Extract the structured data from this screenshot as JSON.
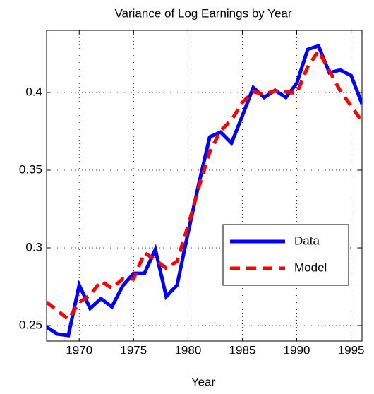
{
  "chart_data": {
    "type": "line",
    "title": "Variance of Log Earnings by Year",
    "x_label": "Year",
    "x": [
      1967,
      1968,
      1969,
      1970,
      1971,
      1972,
      1973,
      1974,
      1975,
      1976,
      1977,
      1978,
      1979,
      1980,
      1981,
      1982,
      1983,
      1984,
      1985,
      1986,
      1987,
      1988,
      1989,
      1990,
      1991,
      1992,
      1993,
      1994,
      1995,
      1996
    ],
    "series": [
      {
        "name": "Data",
        "color": "#0000ff",
        "dashed": false,
        "values": [
          0.249,
          0.2445,
          0.2436,
          0.276,
          0.261,
          0.2673,
          0.262,
          0.2755,
          0.2836,
          0.2836,
          0.299,
          0.2686,
          0.276,
          0.3095,
          0.3414,
          0.3714,
          0.3745,
          0.3675,
          0.385,
          0.4032,
          0.3968,
          0.4014,
          0.3968,
          0.4059,
          0.4277,
          0.43,
          0.4127,
          0.4145,
          0.4109,
          0.3927
        ]
      },
      {
        "name": "Model",
        "color": "#ff0000",
        "dashed": true,
        "values": [
          0.265,
          0.2595,
          0.254,
          0.265,
          0.2695,
          0.2786,
          0.274,
          0.28,
          0.28,
          0.2968,
          0.2923,
          0.2868,
          0.2914,
          0.314,
          0.339,
          0.3618,
          0.3755,
          0.3823,
          0.3936,
          0.4005,
          0.399,
          0.401,
          0.4005,
          0.3995,
          0.4164,
          0.4268,
          0.414,
          0.401,
          0.3914,
          0.3814
        ]
      }
    ],
    "xlim": [
      1967,
      1996
    ],
    "xticks": [
      1970,
      1975,
      1980,
      1985,
      1990,
      1995
    ],
    "ylim": [
      0.24,
      0.44
    ],
    "yticks": [
      0.25,
      0.3,
      0.35,
      0.4
    ],
    "grid": true,
    "legend_position": "lower right"
  }
}
